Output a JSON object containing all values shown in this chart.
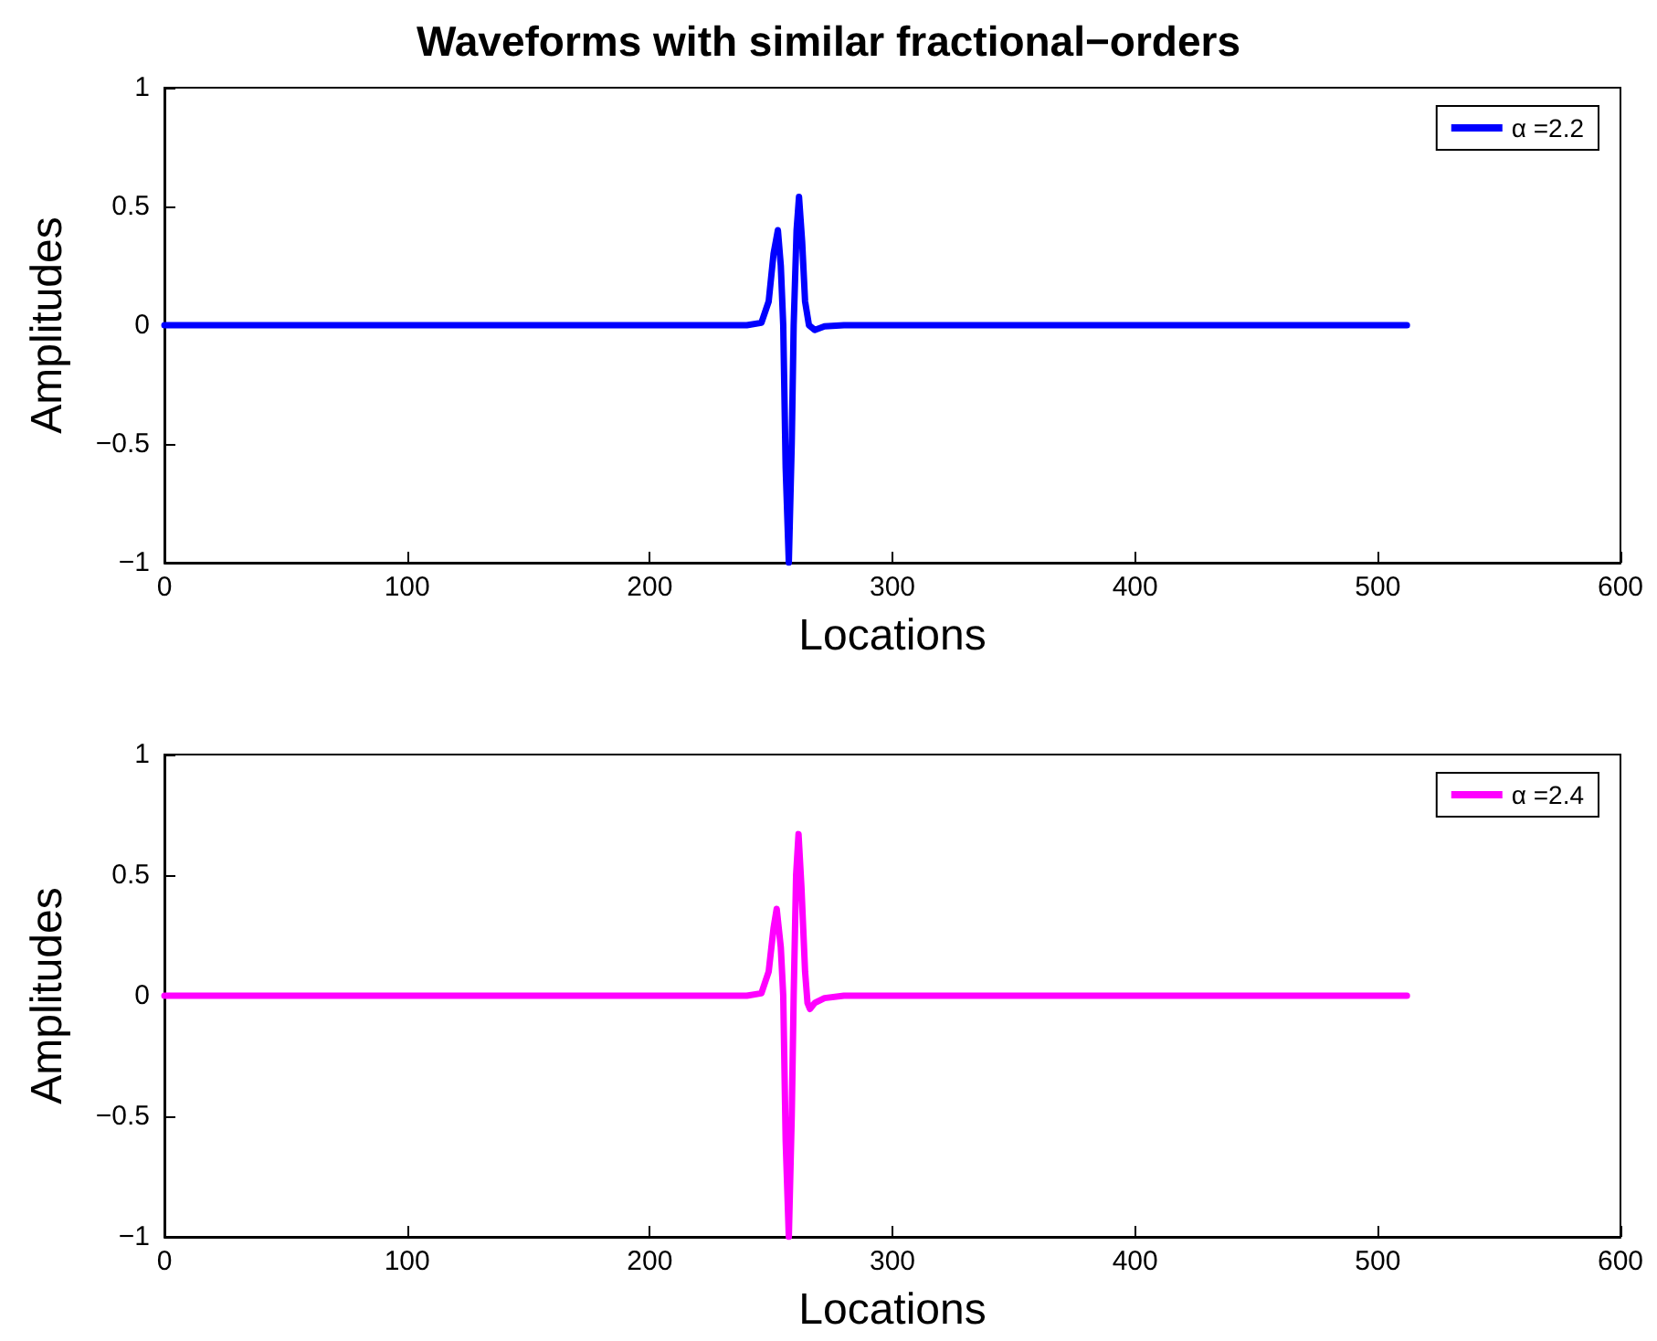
{
  "chart_data": [
    {
      "type": "line",
      "title": "Waveforms with similar fractional−orders",
      "xlabel": "Locations",
      "ylabel": "Amplitudes",
      "x": [
        0,
        240,
        246,
        249,
        251,
        252.8,
        254,
        255,
        256,
        257.3,
        258.5,
        259.3,
        260.5,
        261.5,
        262.8,
        264,
        265.6,
        268,
        272,
        280,
        512
      ],
      "series": [
        {
          "name": "α =2.2",
          "color": "#0000ff",
          "values": [
            0,
            0,
            0.01,
            0.1,
            0.3,
            0.4,
            0.25,
            0,
            -0.6,
            -1,
            -0.5,
            0,
            0.4,
            0.54,
            0.35,
            0.1,
            0,
            -0.02,
            -0.005,
            0,
            0
          ]
        }
      ],
      "xlim": [
        0,
        600
      ],
      "xticks": [
        0,
        100,
        200,
        300,
        400,
        500,
        600
      ],
      "ylim": [
        -1,
        1
      ],
      "yticks": [
        -1,
        -0.5,
        0,
        0.5,
        1
      ],
      "legend": "top right",
      "grid": false
    },
    {
      "type": "line",
      "xlabel": "Locations",
      "ylabel": "Amplitudes",
      "x": [
        0,
        240,
        246,
        249,
        251,
        252.3,
        254,
        255,
        256,
        257.3,
        258.5,
        259.3,
        260.3,
        261.3,
        262.5,
        264,
        265,
        266,
        268,
        272,
        280,
        512
      ],
      "series": [
        {
          "name": "α =2.4",
          "color": "#ff00ff",
          "values": [
            0,
            0,
            0.01,
            0.1,
            0.28,
            0.36,
            0.2,
            0,
            -0.6,
            -1,
            -0.5,
            0,
            0.5,
            0.67,
            0.45,
            0.1,
            -0.03,
            -0.055,
            -0.03,
            -0.01,
            0,
            0
          ]
        }
      ],
      "xlim": [
        0,
        600
      ],
      "xticks": [
        0,
        100,
        200,
        300,
        400,
        500,
        600
      ],
      "ylim": [
        -1,
        1
      ],
      "yticks": [
        -1,
        -0.5,
        0,
        0.5,
        1
      ],
      "legend": "top right",
      "grid": false
    }
  ]
}
